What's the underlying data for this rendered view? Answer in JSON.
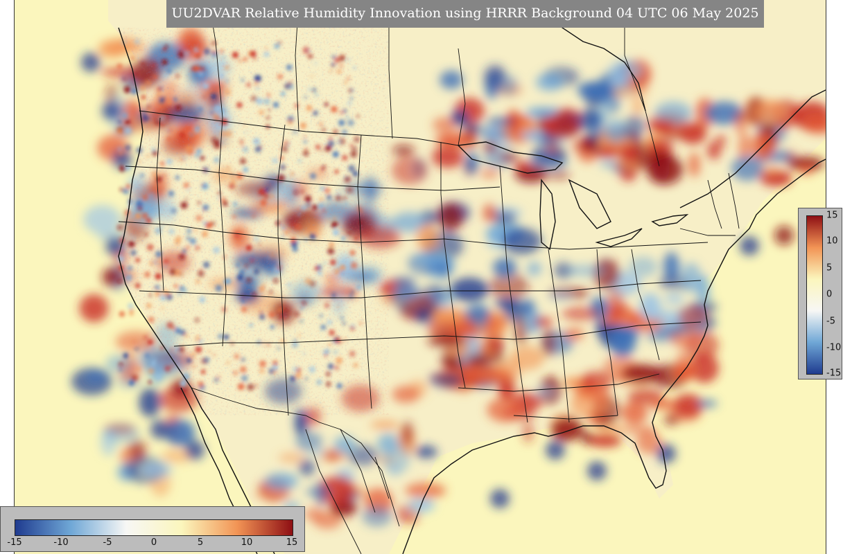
{
  "title": "UU2DVAR Relative Humidity Innovation using HRRR Background 04 UTC 06 May 2025",
  "colorbar": {
    "ticks": [
      "15",
      "10",
      "5",
      "0",
      "-5",
      "-10",
      "-15"
    ],
    "h_ticks": [
      "-15",
      "-10",
      "-5",
      "0",
      "5",
      "10",
      "15"
    ],
    "min": -15,
    "max": 15,
    "colors": {
      "neg_max": "#1f3b8f",
      "neg_mid": "#6fa7d6",
      "neutral": "#f7f7f5",
      "low_pos": "#fbf6bd",
      "pos_mid": "#f29455",
      "pos_max": "#8e0f14"
    }
  },
  "map": {
    "background_color": "#fbf6bd",
    "land_color": "#f7efc7",
    "line_color": "#111111"
  }
}
